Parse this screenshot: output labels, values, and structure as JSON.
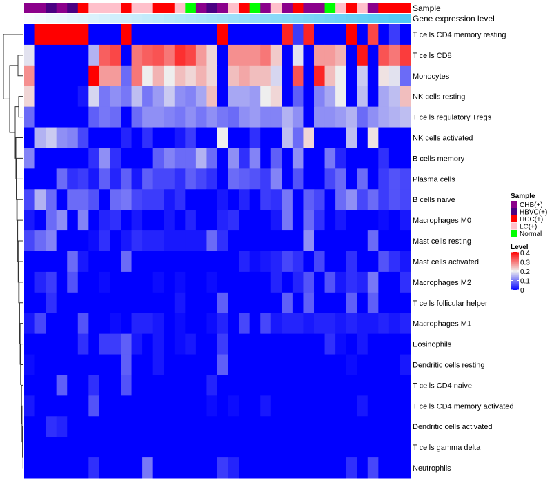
{
  "chart_data": {
    "type": "heatmap",
    "annotation_labels": {
      "sample": "Sample",
      "gene_expression": "Gene expression level"
    },
    "sample_groups": [
      "CHB(+)",
      "HBVC(+)",
      "HCC(+)",
      "LC(+)",
      "Normal"
    ],
    "sample_colors": {
      "CHB(+)": "#8B008B",
      "HBVC(+)": "#4B0082",
      "HCC(+)": "#FF0000",
      "LC(+)": "#FFC0CB",
      "Normal": "#00FF00"
    },
    "columns_sample": [
      "CHB(+)",
      "CHB(+)",
      "HBVC(+)",
      "CHB(+)",
      "HBVC(+)",
      "HCC(+)",
      "LC(+)",
      "LC(+)",
      "LC(+)",
      "HCC(+)",
      "LC(+)",
      "LC(+)",
      "HCC(+)",
      "HCC(+)",
      "LC(+)",
      "Normal",
      "CHB(+)",
      "HBVC(+)",
      "CHB(+)",
      "LC(+)",
      "HCC(+)",
      "Normal",
      "CHB(+)",
      "LC(+)",
      "CHB(+)",
      "HCC(+)",
      "CHB(+)",
      "CHB(+)",
      "Normal",
      "LC(+)",
      "HCC(+)",
      "LC(+)",
      "CHB(+)",
      "HCC(+)",
      "HCC(+)",
      "HCC(+)"
    ],
    "gene_expression_colors": [
      "#F8FBFE",
      "#4FC8F5"
    ],
    "rows": [
      "T cells CD4 memory resting",
      "T cells CD8",
      "Monocytes",
      "NK cells resting",
      "T cells regulatory  Tregs",
      "NK cells activated",
      "B cells memory",
      "Plasma cells",
      "B cells naive",
      "Macrophages M0",
      "Mast cells resting",
      "Mast cells activated",
      "Macrophages M2",
      "T cells follicular helper",
      "Macrophages M1",
      "Eosinophils",
      "Dendritic cells resting",
      "T cells CD4 naive",
      "T cells CD4 memory activated",
      "Dendritic cells activated",
      "T cells gamma delta",
      "Neutrophils"
    ],
    "values": [
      [
        0,
        0.4,
        0.4,
        0.4,
        0.4,
        0.4,
        0,
        0,
        0,
        0.4,
        0,
        0,
        0,
        0,
        0,
        0,
        0,
        0,
        0.4,
        0,
        0,
        0,
        0,
        0,
        0.37,
        0.05,
        0.37,
        0,
        0,
        0,
        0.4,
        0,
        0.34,
        0,
        0.05,
        0
      ],
      [
        0.19,
        0,
        0,
        0,
        0,
        0,
        0.15,
        0.32,
        0.34,
        0,
        0.3,
        0.32,
        0.33,
        0.3,
        0.36,
        0.34,
        0.27,
        0.22,
        0,
        0.28,
        0.28,
        0.28,
        0.3,
        0.23,
        0,
        0.19,
        0,
        0.27,
        0.27,
        0.25,
        0,
        0.38,
        0,
        0.33,
        0.3,
        0.35
      ],
      [
        0.28,
        0,
        0,
        0,
        0,
        0,
        0.4,
        0.27,
        0.27,
        0.09,
        0.3,
        0.2,
        0.25,
        0.2,
        0.24,
        0.22,
        0.25,
        0.22,
        0,
        0.24,
        0.26,
        0.24,
        0.24,
        0.18,
        0,
        0.33,
        0,
        0.37,
        0.24,
        0.2,
        0,
        0.17,
        0,
        0.21,
        0.19,
        0.09
      ],
      [
        0.22,
        0,
        0,
        0,
        0,
        0.02,
        0.18,
        0.1,
        0.12,
        0.1,
        0.16,
        0.1,
        0.13,
        0.17,
        0.12,
        0.11,
        0.14,
        0.24,
        0,
        0.14,
        0.14,
        0.13,
        0.2,
        0.22,
        0,
        0.08,
        0,
        0.11,
        0.14,
        0.2,
        0,
        0.16,
        0,
        0.14,
        0.16,
        0.24
      ],
      [
        0.09,
        0,
        0,
        0,
        0,
        0,
        0.08,
        0.1,
        0.09,
        0,
        0.09,
        0.12,
        0.12,
        0.11,
        0.1,
        0.12,
        0.1,
        0.12,
        0.1,
        0.09,
        0.12,
        0.13,
        0.11,
        0.11,
        0.15,
        0.12,
        0,
        0.12,
        0.12,
        0.13,
        0.15,
        0.09,
        0.12,
        0.14,
        0.15,
        0.16
      ],
      [
        0,
        0.15,
        0.17,
        0.12,
        0.11,
        0.06,
        0,
        0,
        0,
        0.03,
        0,
        0.04,
        0,
        0,
        0.02,
        0.05,
        0,
        0,
        0.2,
        0,
        0,
        0.04,
        0,
        0,
        0.16,
        0.09,
        0.22,
        0,
        0,
        0,
        0.16,
        0,
        0.21,
        0,
        0,
        0
      ],
      [
        0.11,
        0,
        0,
        0,
        0,
        0,
        0.04,
        0.12,
        0.04,
        0,
        0,
        0,
        0.08,
        0.11,
        0.09,
        0.09,
        0.15,
        0.09,
        0,
        0.12,
        0.04,
        0.11,
        0,
        0.08,
        0,
        0.12,
        0,
        0,
        0.1,
        0.03,
        0,
        0,
        0,
        0.04,
        0,
        0
      ],
      [
        0,
        0,
        0,
        0.09,
        0.04,
        0.05,
        0.02,
        0.08,
        0.03,
        0.08,
        0.02,
        0.08,
        0.06,
        0.06,
        0.04,
        0.08,
        0.06,
        0.04,
        0,
        0.09,
        0.08,
        0.07,
        0.05,
        0.11,
        0,
        0.07,
        0,
        0,
        0.06,
        0.09,
        0,
        0.09,
        0,
        0.05,
        0.07,
        0.06
      ],
      [
        0.06,
        0.15,
        0.09,
        0,
        0.09,
        0.09,
        0.07,
        0,
        0.09,
        0.1,
        0.06,
        0.05,
        0.05,
        0.02,
        0.04,
        0,
        0,
        0,
        0.02,
        0,
        0.03,
        0,
        0.05,
        0.04,
        0.1,
        0,
        0.08,
        0.06,
        0,
        0.09,
        0.12,
        0.06,
        0.09,
        0.05,
        0.07,
        0.06
      ],
      [
        0.02,
        0,
        0.09,
        0.12,
        0,
        0.11,
        0,
        0.03,
        0.04,
        0,
        0.02,
        0,
        0,
        0.02,
        0,
        0.03,
        0,
        0,
        0.03,
        0.04,
        0,
        0,
        0,
        0.02,
        0.1,
        0,
        0.09,
        0.04,
        0,
        0.02,
        0,
        0,
        0,
        0.01,
        0,
        0.02
      ],
      [
        0.06,
        0.09,
        0.11,
        0,
        0,
        0,
        0.01,
        0.04,
        0,
        0.02,
        0.04,
        0.03,
        0.03,
        0.02,
        0.02,
        0.02,
        0.02,
        0.09,
        0.04,
        0,
        0,
        0,
        0,
        0,
        0,
        0,
        0.12,
        0,
        0,
        0,
        0,
        0,
        0.09,
        0,
        0,
        0
      ],
      [
        0,
        0,
        0,
        0,
        0.09,
        0.02,
        0,
        0,
        0,
        0.09,
        0,
        0,
        0,
        0,
        0,
        0,
        0,
        0,
        0,
        0,
        0.03,
        0.01,
        0.02,
        0.03,
        0.06,
        0.04,
        0,
        0.06,
        0,
        0,
        0.04,
        0,
        0,
        0.07,
        0.04,
        0.02
      ],
      [
        0,
        0.03,
        0.05,
        0,
        0.07,
        0,
        0,
        0.01,
        0,
        0,
        0,
        0,
        0.01,
        0,
        0.01,
        0,
        0,
        0.01,
        0,
        0,
        0,
        0,
        0,
        0.03,
        0,
        0.03,
        0.07,
        0,
        0.07,
        0.02,
        0.04,
        0.03,
        0.1,
        0,
        0,
        0.04
      ],
      [
        0,
        0,
        0.04,
        0,
        0,
        0,
        0,
        0,
        0,
        0,
        0,
        0,
        0,
        0,
        0.02,
        0,
        0,
        0,
        0.08,
        0,
        0,
        0,
        0,
        0,
        0.08,
        0,
        0.08,
        0,
        0,
        0,
        0.08,
        0,
        0.08,
        0,
        0,
        0
      ],
      [
        0.02,
        0.06,
        0,
        0,
        0,
        0.07,
        0,
        0,
        0.01,
        0,
        0.03,
        0.03,
        0.02,
        0,
        0.01,
        0,
        0,
        0.01,
        0.03,
        0,
        0.06,
        0,
        0.06,
        0.02,
        0.03,
        0.03,
        0.02,
        0.03,
        0.03,
        0.02,
        0.03,
        0.02,
        0.02,
        0.03,
        0.02,
        0.03
      ],
      [
        0,
        0,
        0,
        0,
        0,
        0.04,
        0,
        0.05,
        0.05,
        0.08,
        0.02,
        0,
        0.02,
        0,
        0.01,
        0.02,
        0,
        0,
        0.05,
        0,
        0,
        0,
        0,
        0,
        0,
        0,
        0,
        0,
        0.04,
        0.01,
        0,
        0.02,
        0,
        0,
        0,
        0
      ],
      [
        0.01,
        0,
        0,
        0,
        0,
        0,
        0,
        0,
        0,
        0.08,
        0,
        0,
        0.02,
        0,
        0,
        0,
        0,
        0,
        0.08,
        0,
        0,
        0,
        0,
        0,
        0,
        0,
        0,
        0,
        0,
        0,
        0.01,
        0,
        0,
        0,
        0,
        0.02
      ],
      [
        0,
        0,
        0,
        0.08,
        0,
        0,
        0.04,
        0,
        0,
        0.07,
        0,
        0,
        0,
        0,
        0,
        0,
        0,
        0.03,
        0,
        0,
        0,
        0,
        0,
        0,
        0,
        0,
        0,
        0,
        0,
        0,
        0,
        0,
        0,
        0,
        0,
        0
      ],
      [
        0.02,
        0,
        0,
        0,
        0,
        0,
        0.07,
        0,
        0,
        0,
        0,
        0,
        0,
        0,
        0,
        0,
        0,
        0.01,
        0,
        0.01,
        0,
        0,
        0.02,
        0,
        0,
        0,
        0,
        0,
        0,
        0,
        0,
        0.02,
        0,
        0,
        0,
        0
      ],
      [
        0,
        0,
        0.04,
        0.03,
        0,
        0,
        0,
        0,
        0,
        0,
        0,
        0,
        0,
        0,
        0,
        0,
        0,
        0,
        0,
        0,
        0,
        0,
        0,
        0,
        0,
        0,
        0,
        0,
        0,
        0,
        0,
        0,
        0,
        0,
        0,
        0
      ],
      [
        0,
        0,
        0,
        0,
        0,
        0,
        0,
        0,
        0,
        0,
        0,
        0,
        0,
        0,
        0,
        0,
        0,
        0,
        0,
        0,
        0,
        0,
        0,
        0,
        0,
        0,
        0,
        0,
        0,
        0,
        0,
        0,
        0,
        0,
        0,
        0
      ],
      [
        0,
        0,
        0,
        0,
        0,
        0,
        0.04,
        0,
        0,
        0,
        0,
        0.1,
        0,
        0,
        0,
        0,
        0,
        0,
        0.05,
        0.03,
        0,
        0,
        0,
        0,
        0,
        0,
        0,
        0,
        0,
        0,
        0.04,
        0,
        0.06,
        0,
        0,
        0
      ]
    ],
    "color_scale": {
      "min": 0,
      "mid": 0.2,
      "max": 0.4,
      "low_color": "#0000FF",
      "mid_color": "#EEEEEE",
      "high_color": "#FF0000"
    },
    "legend": {
      "sample_title": "Sample",
      "level_title": "Level",
      "level_ticks": [
        "0.4",
        "0.3",
        "0.2",
        "0.1",
        "0"
      ],
      "placement": "right"
    }
  }
}
